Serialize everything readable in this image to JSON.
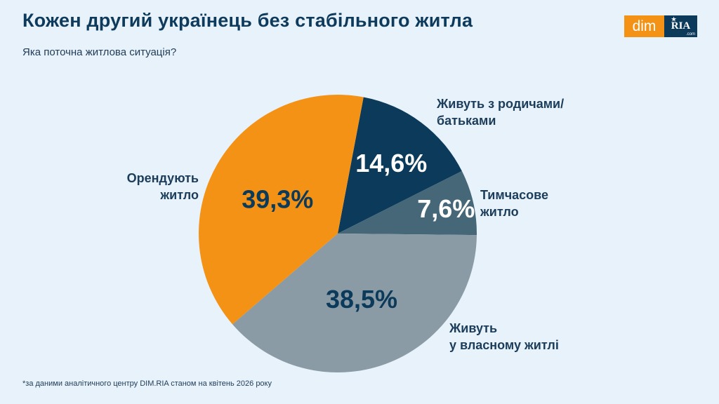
{
  "title": "Кожен другий українець без стабільного житла",
  "subtitle": "Яка поточна житлова ситуація?",
  "logo": {
    "dim": "dim",
    "ria": "RIA",
    "com": ".com"
  },
  "footnote": "*за даними аналітичного центру DIM.RIA станом на квітень 2026 року",
  "chart_data": {
    "type": "pie",
    "title": "Кожен другий українець без стабільного житла",
    "subtitle": "Яка поточна житлова ситуація?",
    "slices": [
      {
        "label": "Живуть з родичами/\nбатьками",
        "value": 14.6,
        "display": "14,6%",
        "color": "#0b3a5b",
        "text_color": "#ffffff"
      },
      {
        "label": "Тимчасове\nжитло",
        "value": 7.6,
        "display": "7,6%",
        "color": "#456778",
        "text_color": "#ffffff"
      },
      {
        "label": "Живуть\nу власному житлі",
        "value": 38.5,
        "display": "38,5%",
        "color": "#8a9ba6",
        "text_color": "#0b3a5b"
      },
      {
        "label": "Орендують\nжитло",
        "value": 39.3,
        "display": "39,3%",
        "color": "#f39215",
        "text_color": "#0b3a5b"
      }
    ]
  }
}
